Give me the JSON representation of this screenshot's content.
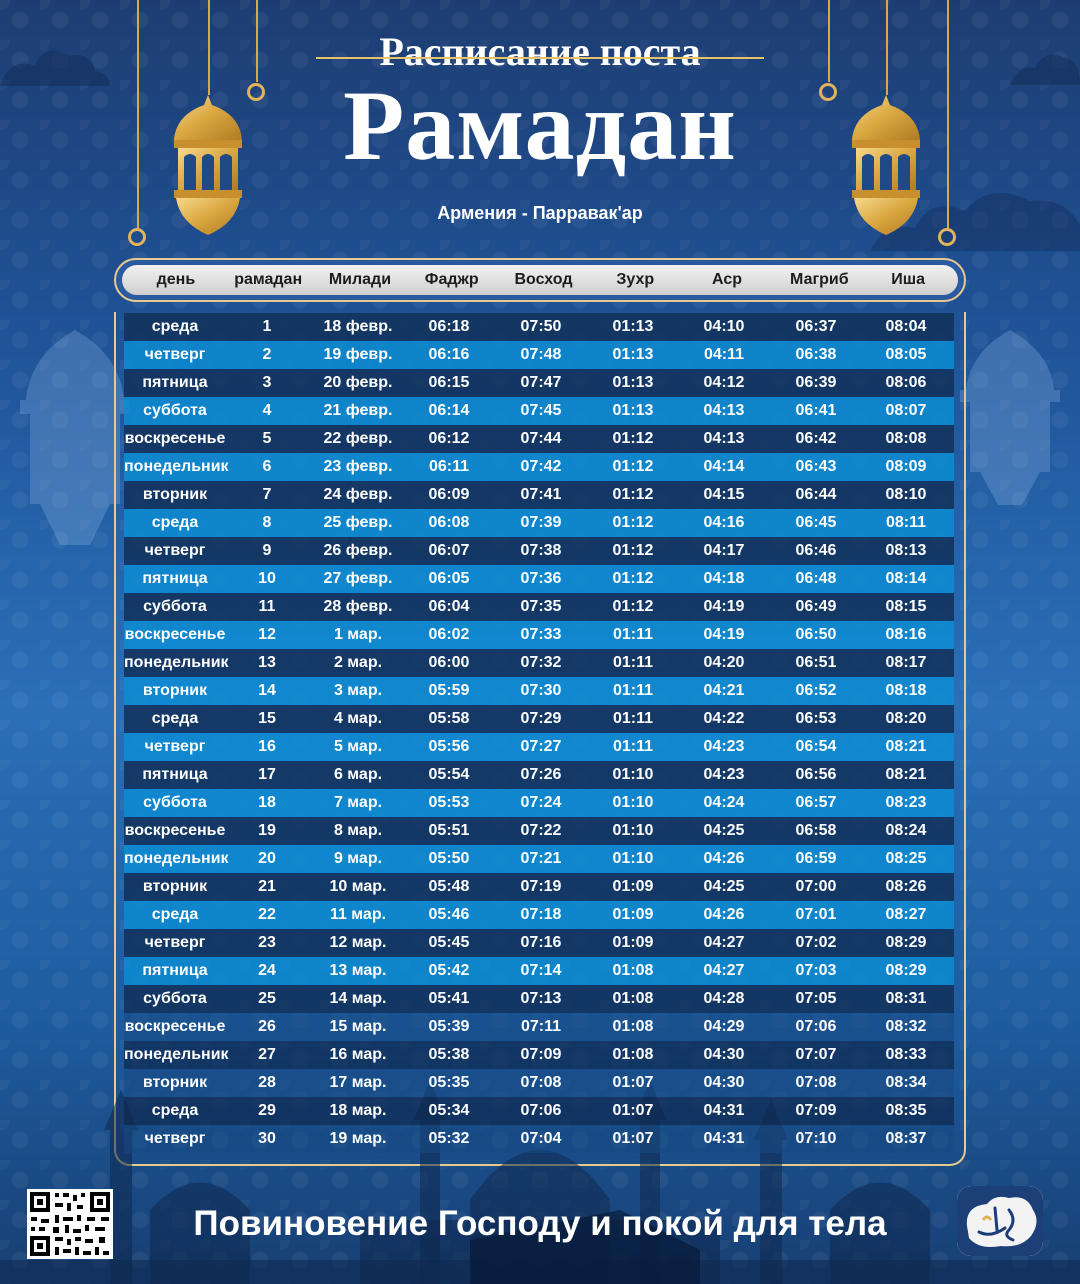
{
  "header": {
    "title_top": "Расписание поста",
    "title_main": "Рамадан",
    "location": "Армения - Парравак'ар"
  },
  "table": {
    "columns": [
      "день",
      "рамадан",
      "Милади",
      "Фаджр",
      "Восход",
      "Зухр",
      "Аср",
      "Магриб",
      "Иша"
    ],
    "rows": [
      [
        "среда",
        "1",
        "18 февр.",
        "06:18",
        "07:50",
        "01:13",
        "04:10",
        "06:37",
        "08:04"
      ],
      [
        "четверг",
        "2",
        "19 февр.",
        "06:16",
        "07:48",
        "01:13",
        "04:11",
        "06:38",
        "08:05"
      ],
      [
        "пятница",
        "3",
        "20 февр.",
        "06:15",
        "07:47",
        "01:13",
        "04:12",
        "06:39",
        "08:06"
      ],
      [
        "суббота",
        "4",
        "21 февр.",
        "06:14",
        "07:45",
        "01:13",
        "04:13",
        "06:41",
        "08:07"
      ],
      [
        "воскресенье",
        "5",
        "22 февр.",
        "06:12",
        "07:44",
        "01:12",
        "04:13",
        "06:42",
        "08:08"
      ],
      [
        "понедельник",
        "6",
        "23 февр.",
        "06:11",
        "07:42",
        "01:12",
        "04:14",
        "06:43",
        "08:09"
      ],
      [
        "вторник",
        "7",
        "24 февр.",
        "06:09",
        "07:41",
        "01:12",
        "04:15",
        "06:44",
        "08:10"
      ],
      [
        "среда",
        "8",
        "25 февр.",
        "06:08",
        "07:39",
        "01:12",
        "04:16",
        "06:45",
        "08:11"
      ],
      [
        "четверг",
        "9",
        "26 февр.",
        "06:07",
        "07:38",
        "01:12",
        "04:17",
        "06:46",
        "08:13"
      ],
      [
        "пятница",
        "10",
        "27 февр.",
        "06:05",
        "07:36",
        "01:12",
        "04:18",
        "06:48",
        "08:14"
      ],
      [
        "суббота",
        "11",
        "28 февр.",
        "06:04",
        "07:35",
        "01:12",
        "04:19",
        "06:49",
        "08:15"
      ],
      [
        "воскресенье",
        "12",
        "1 мар.",
        "06:02",
        "07:33",
        "01:11",
        "04:19",
        "06:50",
        "08:16"
      ],
      [
        "понедельник",
        "13",
        "2 мар.",
        "06:00",
        "07:32",
        "01:11",
        "04:20",
        "06:51",
        "08:17"
      ],
      [
        "вторник",
        "14",
        "3 мар.",
        "05:59",
        "07:30",
        "01:11",
        "04:21",
        "06:52",
        "08:18"
      ],
      [
        "среда",
        "15",
        "4 мар.",
        "05:58",
        "07:29",
        "01:11",
        "04:22",
        "06:53",
        "08:20"
      ],
      [
        "четверг",
        "16",
        "5 мар.",
        "05:56",
        "07:27",
        "01:11",
        "04:23",
        "06:54",
        "08:21"
      ],
      [
        "пятница",
        "17",
        "6 мар.",
        "05:54",
        "07:26",
        "01:10",
        "04:23",
        "06:56",
        "08:21"
      ],
      [
        "суббота",
        "18",
        "7 мар.",
        "05:53",
        "07:24",
        "01:10",
        "04:24",
        "06:57",
        "08:23"
      ],
      [
        "воскресенье",
        "19",
        "8 мар.",
        "05:51",
        "07:22",
        "01:10",
        "04:25",
        "06:58",
        "08:24"
      ],
      [
        "понедельник",
        "20",
        "9 мар.",
        "05:50",
        "07:21",
        "01:10",
        "04:26",
        "06:59",
        "08:25"
      ],
      [
        "вторник",
        "21",
        "10 мар.",
        "05:48",
        "07:19",
        "01:09",
        "04:25",
        "07:00",
        "08:26"
      ],
      [
        "среда",
        "22",
        "11 мар.",
        "05:46",
        "07:18",
        "01:09",
        "04:26",
        "07:01",
        "08:27"
      ],
      [
        "четверг",
        "23",
        "12 мар.",
        "05:45",
        "07:16",
        "01:09",
        "04:27",
        "07:02",
        "08:29"
      ],
      [
        "пятница",
        "24",
        "13 мар.",
        "05:42",
        "07:14",
        "01:08",
        "04:27",
        "07:03",
        "08:29"
      ],
      [
        "суббота",
        "25",
        "14 мар.",
        "05:41",
        "07:13",
        "01:08",
        "04:28",
        "07:05",
        "08:31"
      ],
      [
        "воскресенье",
        "26",
        "15 мар.",
        "05:39",
        "07:11",
        "01:08",
        "04:29",
        "07:06",
        "08:32"
      ],
      [
        "понедельник",
        "27",
        "16 мар.",
        "05:38",
        "07:09",
        "01:08",
        "04:30",
        "07:07",
        "08:33"
      ],
      [
        "вторник",
        "28",
        "17 мар.",
        "05:35",
        "07:08",
        "01:07",
        "04:30",
        "07:08",
        "08:34"
      ],
      [
        "среда",
        "29",
        "18 мар.",
        "05:34",
        "07:06",
        "01:07",
        "04:31",
        "07:09",
        "08:35"
      ],
      [
        "четверг",
        "30",
        "19 мар.",
        "05:32",
        "07:04",
        "01:07",
        "04:31",
        "07:10",
        "08:37"
      ]
    ]
  },
  "footer": {
    "slogan": "Повиновение Господу и покой для тела",
    "qr_icon": "qr-code-icon",
    "logo_icon": "calligraphy-logo-icon"
  },
  "colors": {
    "accent_gold": "#e2b35a",
    "row_dark": "#12325c",
    "row_light": "#0c8cd2"
  }
}
